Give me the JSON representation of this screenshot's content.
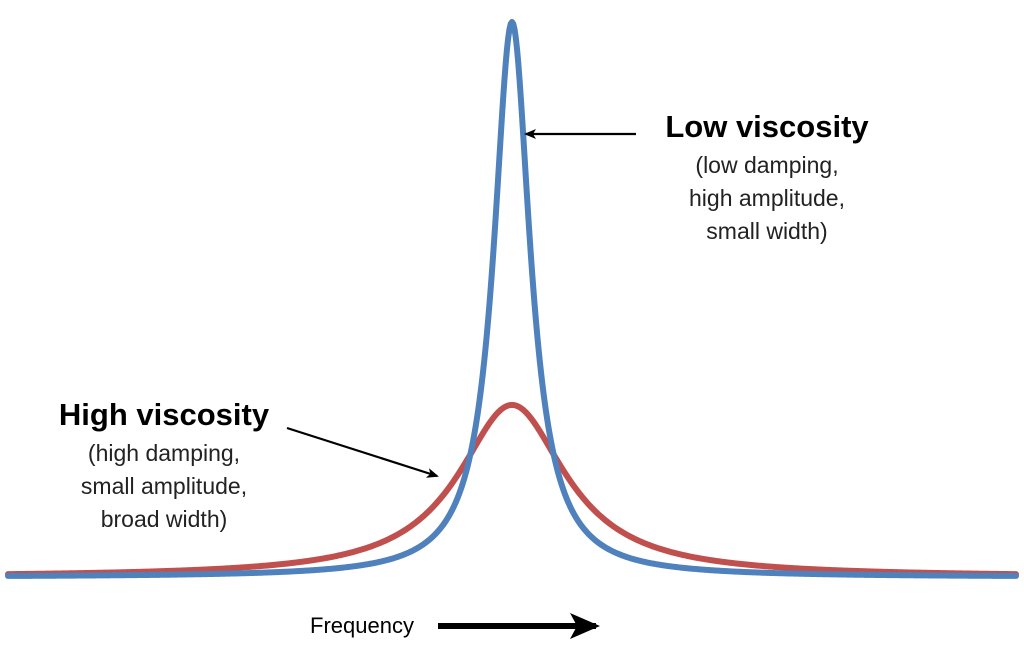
{
  "chart_data": {
    "type": "line",
    "title": "",
    "xlabel": "Frequency",
    "ylabel": "",
    "grid": false,
    "legend": "none",
    "x_range": [
      -5,
      5
    ],
    "y_range": [
      0,
      1
    ],
    "center": 0,
    "series": [
      {
        "name": "Low viscosity",
        "color": "#4f81bd",
        "peak_amplitude": 1.0,
        "half_width": 0.22
      },
      {
        "name": "High viscosity",
        "color": "#c0504d",
        "peak_amplitude": 0.31,
        "half_width": 0.65
      }
    ],
    "annotations": [
      {
        "title": "Low viscosity",
        "lines": [
          "(low damping,",
          "high amplitude,",
          "small width)"
        ]
      },
      {
        "title": "High viscosity",
        "lines": [
          "(high damping,",
          "small amplitude,",
          "broad width)"
        ]
      }
    ]
  }
}
